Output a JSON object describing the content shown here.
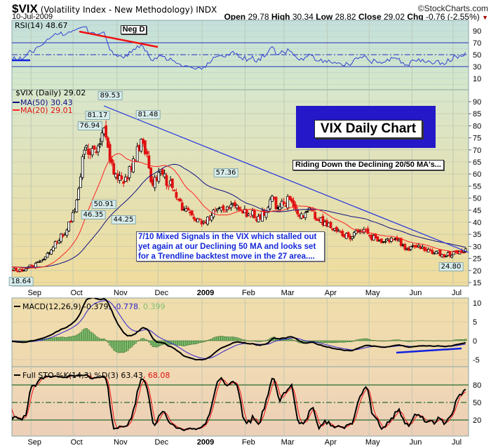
{
  "header": {
    "symbol": "$VIX",
    "description": "(Volatility Index - New Methodology)",
    "exchange": "INDX",
    "date": "10-Jul-2009",
    "brand": "©StockCharts.com",
    "ohlc": [
      {
        "label": "Open",
        "value": "29.78"
      },
      {
        "label": "High",
        "value": "30.34"
      },
      {
        "label": "Low",
        "value": "28.82"
      },
      {
        "label": "Close",
        "value": "29.02"
      },
      {
        "label": "Chg",
        "value": "-0.76 (-2.55%)"
      }
    ],
    "chg_icon": "down-triangle-icon"
  },
  "rsi": {
    "legend": "RSI(14) 48.67",
    "annotation": "Neg D"
  },
  "price": {
    "legend": "$VIX (Daily) 29.02",
    "ma50": "MA(50) 30.43",
    "ma20": "MA(20) 29.01",
    "title_box": "VIX Daily Chart",
    "subtitle_box": "Riding Down the Declining 20/50 MA's...",
    "comment": [
      "7/10  Mixed Signals in the VIX which stalled out",
      "yet again at our Declining 50 MA and looks set",
      "for a Trendline backtest move in the 27 area...."
    ],
    "value_labels": [
      "89.53",
      "81.17",
      "76.94",
      "81.48",
      "50.91",
      "46.35",
      "44.25",
      "57.36",
      "18.64",
      "24.80"
    ]
  },
  "macd": {
    "label": "MACD(12,26,9)",
    "macd": "-0.379",
    "signal": ", -0.778",
    "hist": ", 0.399"
  },
  "sto": {
    "label": "Full STO %K(14,3) %D(3) 63.43",
    "d": ", 68.08"
  },
  "colors": {
    "up": "#000000",
    "down": "#e01010",
    "ma50": "#101080",
    "ma20": "#ff2020",
    "rsi": "#3040d0",
    "trend": "#2030e0",
    "hist": "#80c070"
  },
  "chart_data": {
    "type": "candlestick",
    "title": "$VIX Daily",
    "x_unit": "week-ending Friday",
    "weekly_close": [
      20.0,
      20.6,
      23.0,
      25.7,
      32.0,
      35.0,
      45.1,
      69.9,
      70.3,
      79.1,
      59.9,
      56.1,
      66.3,
      72.7,
      55.3,
      59.9,
      54.3,
      44.9,
      43.0,
      39.2,
      42.8,
      46.1,
      47.3,
      45.0,
      43.4,
      41.2,
      49.3,
      46.4,
      49.3,
      42.4,
      45.9,
      40.7,
      39.7,
      36.6,
      33.9,
      35.8,
      35.3,
      32.1,
      33.1,
      32.6,
      28.9,
      29.6,
      28.2,
      27.9,
      25.9,
      27.9,
      29.0
    ],
    "x_ticks": [
      {
        "label": "Sep",
        "week": 2.1
      },
      {
        "label": "Oct",
        "week": 6.4
      },
      {
        "label": "Nov",
        "week": 10.9
      },
      {
        "label": "Dec",
        "week": 15.1
      },
      {
        "label": "2009",
        "week": 19.6
      },
      {
        "label": "Feb",
        "week": 24.0
      },
      {
        "label": "Mar",
        "week": 28.0
      },
      {
        "label": "Apr",
        "week": 32.4
      },
      {
        "label": "May",
        "week": 36.7
      },
      {
        "label": "Jun",
        "week": 41.1
      },
      {
        "label": "Jul",
        "week": 45.3
      }
    ],
    "price_ticks": [
      15,
      20,
      25,
      30,
      35,
      40,
      45,
      50,
      55,
      60,
      65,
      70,
      75,
      80,
      85,
      90
    ],
    "price_ylim": [
      14,
      94
    ],
    "rsi_ticks": [
      10,
      30,
      50,
      70,
      90
    ],
    "macd_ticks": [
      10,
      5,
      0,
      -5
    ],
    "sto_ticks": [
      20,
      50,
      80
    ],
    "indicators": [
      "MA(50)",
      "MA(20)",
      "RSI(14)",
      "MACD(12,26,9)",
      "Full STO(14,3,3)"
    ]
  }
}
